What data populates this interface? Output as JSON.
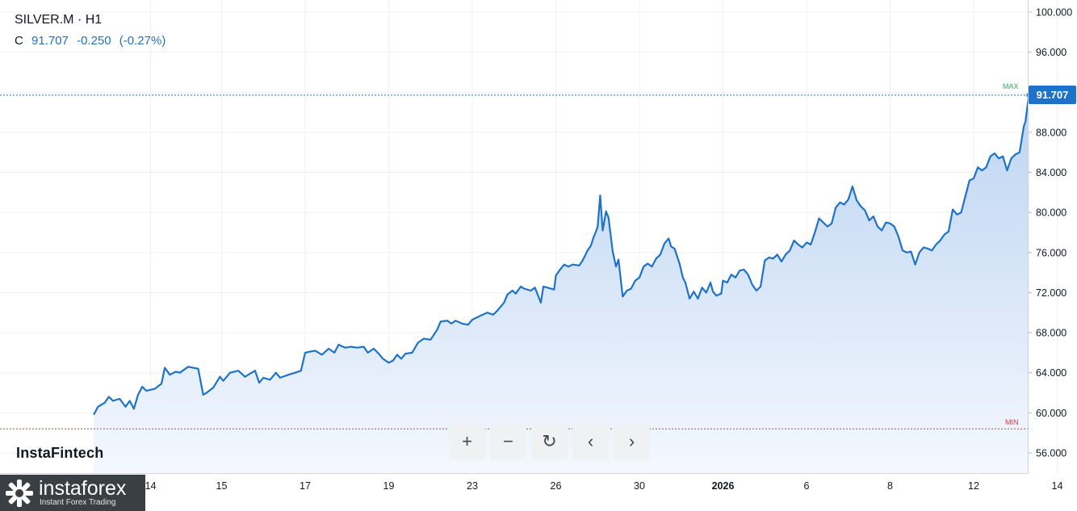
{
  "header": {
    "symbol": "SILVER.M · H1",
    "c_label": "C",
    "close": "91.707",
    "change": "-0.250",
    "change_pct": "(-0.27%)"
  },
  "brand": "InstaFintech",
  "logo": {
    "name": "instaforex",
    "tagline": "Instant Forex Trading"
  },
  "price_badge": "91.707",
  "markers": {
    "max": "MAX",
    "min": "MIN"
  },
  "toolbar": [
    {
      "icon": "plus-icon",
      "glyph": "+"
    },
    {
      "icon": "minus-icon",
      "glyph": "−"
    },
    {
      "icon": "reset-icon",
      "glyph": "↻"
    },
    {
      "icon": "chevron-left-icon",
      "glyph": "‹"
    },
    {
      "icon": "chevron-right-icon",
      "glyph": "›"
    }
  ],
  "colors": {
    "line": "#1e73c8",
    "fill_top": "#bcd4f1",
    "fill_bottom": "#f4f8fe",
    "max_line": "#1e73c8",
    "min_line": "#d9363e",
    "max_text": "#3aa757",
    "min_text": "#d9363e",
    "grid": "#eef0f3",
    "axis_text": "#131722"
  },
  "chart_data": {
    "type": "area",
    "y_ticks": [
      "56.000",
      "60.000",
      "64.000",
      "68.000",
      "72.000",
      "76.000",
      "80.000",
      "84.000",
      "88.000",
      "92.000",
      "96.000",
      "100.000"
    ],
    "x_ticks": [
      {
        "label": "14",
        "x": 0.15
      },
      {
        "label": "15",
        "x": 1.0
      },
      {
        "label": "17",
        "x": 2.0
      },
      {
        "label": "19",
        "x": 3.0
      },
      {
        "label": "23",
        "x": 4.0
      },
      {
        "label": "26",
        "x": 5.0
      },
      {
        "label": "30",
        "x": 6.0
      },
      {
        "label": "2026",
        "x": 7.0,
        "bold": true
      },
      {
        "label": "6",
        "x": 8.0
      },
      {
        "label": "8",
        "x": 9.0
      },
      {
        "label": "12",
        "x": 10.0
      },
      {
        "label": "14",
        "x": 11.0
      }
    ],
    "ylim": [
      54.2,
      101.2
    ],
    "xlim": [
      -0.53,
      10.66
    ],
    "max_value": 92.1,
    "min_value": 58.4,
    "last_value": 91.707,
    "series": [
      {
        "values": [
          [
            -0.53,
            59.8
          ],
          [
            -0.48,
            60.6
          ],
          [
            -0.4,
            61.0
          ],
          [
            -0.35,
            61.6
          ],
          [
            -0.3,
            61.2
          ],
          [
            -0.22,
            61.4
          ],
          [
            -0.15,
            60.6
          ],
          [
            -0.1,
            61.2
          ],
          [
            -0.05,
            60.4
          ],
          [
            0.0,
            61.8
          ],
          [
            0.05,
            62.6
          ],
          [
            0.1,
            62.2
          ],
          [
            0.2,
            62.4
          ],
          [
            0.28,
            62.9
          ],
          [
            0.32,
            64.5
          ],
          [
            0.38,
            63.8
          ],
          [
            0.45,
            64.1
          ],
          [
            0.5,
            64.0
          ],
          [
            0.6,
            64.6
          ],
          [
            0.72,
            64.4
          ],
          [
            0.78,
            61.8
          ],
          [
            0.82,
            62.0
          ],
          [
            0.9,
            62.5
          ],
          [
            0.98,
            63.6
          ],
          [
            1.02,
            63.2
          ],
          [
            1.1,
            64.0
          ],
          [
            1.2,
            64.2
          ],
          [
            1.28,
            63.6
          ],
          [
            1.32,
            63.8
          ],
          [
            1.4,
            64.2
          ],
          [
            1.45,
            63.0
          ],
          [
            1.5,
            63.5
          ],
          [
            1.58,
            63.3
          ],
          [
            1.65,
            64.0
          ],
          [
            1.7,
            63.5
          ],
          [
            1.8,
            63.8
          ],
          [
            1.88,
            64.0
          ],
          [
            1.95,
            64.2
          ],
          [
            2.0,
            66.0
          ],
          [
            2.05,
            66.1
          ],
          [
            2.12,
            66.2
          ],
          [
            2.2,
            65.8
          ],
          [
            2.28,
            66.4
          ],
          [
            2.35,
            66.0
          ],
          [
            2.4,
            66.8
          ],
          [
            2.48,
            66.5
          ],
          [
            2.55,
            66.6
          ],
          [
            2.62,
            66.5
          ],
          [
            2.7,
            66.6
          ],
          [
            2.75,
            66.0
          ],
          [
            2.82,
            66.4
          ],
          [
            2.88,
            65.9
          ],
          [
            2.93,
            65.4
          ],
          [
            3.0,
            65.0
          ],
          [
            3.05,
            65.2
          ],
          [
            3.1,
            65.8
          ],
          [
            3.15,
            65.4
          ],
          [
            3.2,
            65.9
          ],
          [
            3.28,
            66.0
          ],
          [
            3.35,
            67.0
          ],
          [
            3.42,
            67.4
          ],
          [
            3.5,
            67.3
          ],
          [
            3.58,
            68.3
          ],
          [
            3.62,
            69.1
          ],
          [
            3.7,
            69.2
          ],
          [
            3.75,
            68.9
          ],
          [
            3.8,
            69.2
          ],
          [
            3.88,
            68.9
          ],
          [
            3.95,
            68.8
          ],
          [
            4.0,
            69.3
          ],
          [
            4.05,
            69.5
          ],
          [
            4.1,
            69.7
          ],
          [
            4.18,
            70.0
          ],
          [
            4.25,
            69.8
          ],
          [
            4.3,
            70.2
          ],
          [
            4.38,
            71.0
          ],
          [
            4.42,
            71.8
          ],
          [
            4.48,
            72.2
          ],
          [
            4.52,
            71.9
          ],
          [
            4.58,
            72.6
          ],
          [
            4.62,
            72.4
          ],
          [
            4.7,
            72.2
          ],
          [
            4.75,
            72.5
          ],
          [
            4.82,
            71.0
          ],
          [
            4.85,
            72.6
          ],
          [
            4.9,
            72.5
          ],
          [
            4.98,
            72.3
          ],
          [
            5.0,
            73.7
          ],
          [
            5.05,
            74.3
          ],
          [
            5.1,
            74.8
          ],
          [
            5.15,
            74.6
          ],
          [
            5.2,
            74.8
          ],
          [
            5.28,
            74.7
          ],
          [
            5.32,
            75.2
          ],
          [
            5.38,
            76.2
          ],
          [
            5.42,
            76.7
          ],
          [
            5.45,
            77.5
          ],
          [
            5.48,
            78.1
          ],
          [
            5.5,
            78.6
          ],
          [
            5.53,
            81.7
          ],
          [
            5.56,
            78.2
          ],
          [
            5.6,
            80.1
          ],
          [
            5.63,
            79.5
          ],
          [
            5.68,
            76.1
          ],
          [
            5.72,
            74.6
          ],
          [
            5.75,
            75.3
          ],
          [
            5.8,
            71.6
          ],
          [
            5.85,
            72.2
          ],
          [
            5.9,
            72.4
          ],
          [
            5.95,
            73.2
          ],
          [
            6.0,
            73.5
          ],
          [
            6.05,
            74.6
          ],
          [
            6.1,
            74.9
          ],
          [
            6.15,
            74.6
          ],
          [
            6.2,
            75.4
          ],
          [
            6.25,
            75.8
          ],
          [
            6.3,
            76.9
          ],
          [
            6.35,
            77.4
          ],
          [
            6.38,
            76.6
          ],
          [
            6.42,
            76.4
          ],
          [
            6.48,
            74.9
          ],
          [
            6.52,
            73.5
          ],
          [
            6.55,
            73.0
          ],
          [
            6.6,
            71.4
          ],
          [
            6.65,
            72.1
          ],
          [
            6.7,
            71.4
          ],
          [
            6.75,
            72.5
          ],
          [
            6.8,
            72.0
          ],
          [
            6.85,
            73.0
          ],
          [
            6.88,
            72.1
          ],
          [
            6.92,
            71.7
          ],
          [
            6.98,
            71.9
          ],
          [
            7.0,
            73.2
          ],
          [
            7.05,
            73.0
          ],
          [
            7.1,
            73.8
          ],
          [
            7.15,
            73.5
          ],
          [
            7.2,
            74.2
          ],
          [
            7.25,
            74.3
          ],
          [
            7.3,
            73.8
          ],
          [
            7.35,
            72.8
          ],
          [
            7.4,
            72.2
          ],
          [
            7.45,
            72.6
          ],
          [
            7.5,
            75.2
          ],
          [
            7.55,
            75.5
          ],
          [
            7.6,
            75.4
          ],
          [
            7.65,
            75.8
          ],
          [
            7.7,
            75.1
          ],
          [
            7.75,
            75.8
          ],
          [
            7.8,
            76.2
          ],
          [
            7.85,
            77.2
          ],
          [
            7.9,
            76.8
          ],
          [
            7.95,
            76.5
          ],
          [
            8.0,
            77.0
          ],
          [
            8.05,
            76.8
          ],
          [
            8.1,
            78.0
          ],
          [
            8.15,
            79.4
          ],
          [
            8.2,
            79.0
          ],
          [
            8.25,
            78.6
          ],
          [
            8.3,
            78.9
          ],
          [
            8.35,
            80.5
          ],
          [
            8.4,
            81.0
          ],
          [
            8.45,
            80.8
          ],
          [
            8.5,
            81.3
          ],
          [
            8.55,
            82.6
          ],
          [
            8.6,
            81.2
          ],
          [
            8.65,
            80.6
          ],
          [
            8.7,
            80.2
          ],
          [
            8.75,
            79.2
          ],
          [
            8.8,
            79.6
          ],
          [
            8.85,
            78.6
          ],
          [
            8.9,
            78.2
          ],
          [
            8.95,
            79.0
          ],
          [
            9.0,
            78.9
          ],
          [
            9.05,
            78.6
          ],
          [
            9.1,
            77.6
          ],
          [
            9.15,
            76.2
          ],
          [
            9.2,
            76.0
          ],
          [
            9.25,
            76.1
          ],
          [
            9.3,
            74.8
          ],
          [
            9.35,
            76.0
          ],
          [
            9.4,
            76.5
          ],
          [
            9.45,
            76.4
          ],
          [
            9.5,
            76.2
          ],
          [
            9.55,
            76.8
          ],
          [
            9.6,
            77.2
          ],
          [
            9.65,
            77.8
          ],
          [
            9.7,
            78.1
          ],
          [
            9.75,
            80.3
          ],
          [
            9.8,
            79.8
          ],
          [
            9.85,
            80.0
          ],
          [
            9.9,
            81.6
          ],
          [
            9.95,
            83.2
          ],
          [
            10.0,
            83.4
          ],
          [
            10.05,
            84.5
          ],
          [
            10.1,
            84.2
          ],
          [
            10.15,
            84.5
          ],
          [
            10.2,
            85.6
          ],
          [
            10.25,
            85.9
          ],
          [
            10.3,
            85.4
          ],
          [
            10.35,
            85.6
          ],
          [
            10.4,
            84.2
          ],
          [
            10.45,
            85.4
          ],
          [
            10.5,
            85.8
          ],
          [
            10.55,
            86.0
          ],
          [
            10.6,
            88.6
          ],
          [
            10.62,
            89.1
          ],
          [
            10.66,
            91.707
          ]
        ]
      }
    ]
  }
}
